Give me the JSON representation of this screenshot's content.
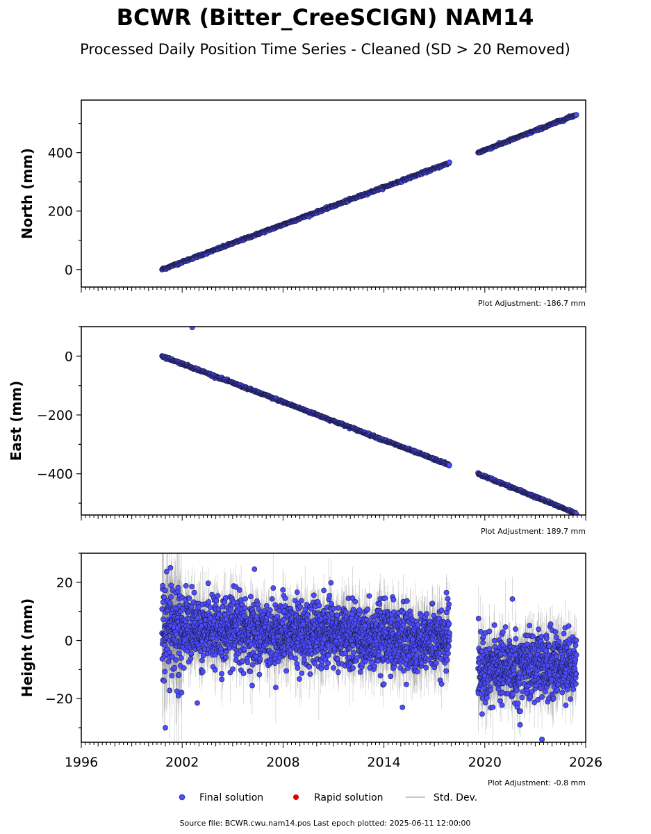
{
  "title": "BCWR (Bitter_CreeSCIGN) NAM14",
  "subtitle": "Processed Daily Position Time Series - Cleaned (SD > 20 Removed)",
  "legend": {
    "final": "Final solution",
    "rapid": "Rapid solution",
    "std": "Std. Dev."
  },
  "footer": "Source file: BCWR.cwu.nam14.pos  Last epoch plotted: 2025-06-11 12:00:00",
  "colors": {
    "final": "#4d4dff",
    "final_edge": "#1a1a40",
    "rapid": "#e00000",
    "std": "#c8c8c8",
    "std_dark": "#707070"
  },
  "chart_data": [
    {
      "type": "scatter",
      "ylabel": "North (mm)",
      "adjustment": "Plot Adjustment: -186.7 mm",
      "xlim": [
        1996,
        2026
      ],
      "ylim": [
        -60,
        580
      ],
      "yticks": [
        0,
        200,
        400
      ],
      "ytick_labels": [
        "0",
        "200",
        "400"
      ],
      "segments": [
        {
          "x": [
            2000.8,
            2017.9
          ],
          "y": [
            0,
            365
          ]
        },
        {
          "x": [
            2019.6,
            2025.45
          ],
          "y": [
            400,
            530
          ]
        }
      ],
      "noise_sd": 3,
      "outliers": []
    },
    {
      "type": "scatter",
      "ylabel": "East (mm)",
      "adjustment": "Plot Adjustment: 189.7 mm",
      "xlim": [
        1996,
        2026
      ],
      "ylim": [
        -540,
        100
      ],
      "yticks": [
        -400,
        -200,
        0
      ],
      "ytick_labels": [
        "−400",
        "−200",
        "0"
      ],
      "segments": [
        {
          "x": [
            2000.8,
            2017.9
          ],
          "y": [
            0,
            -370
          ]
        },
        {
          "x": [
            2019.6,
            2025.45
          ],
          "y": [
            -400,
            -535
          ]
        }
      ],
      "noise_sd": 3,
      "outliers": [
        {
          "x": 2002.6,
          "y": 97
        }
      ]
    },
    {
      "type": "scatter",
      "ylabel": "Height (mm)",
      "adjustment": "Plot Adjustment: -0.8 mm",
      "xlim": [
        1996,
        2026
      ],
      "ylim": [
        -35,
        30
      ],
      "yticks": [
        -20,
        0,
        20
      ],
      "ytick_labels": [
        "−20",
        "0",
        "20"
      ],
      "xticks": [
        1996,
        2002,
        2008,
        2014,
        2020,
        2026
      ],
      "xtick_labels": [
        "1996",
        "2002",
        "2008",
        "2014",
        "2020",
        "2026"
      ],
      "segments": [
        {
          "x": [
            2000.8,
            2017.9
          ],
          "y": [
            4,
            0
          ]
        },
        {
          "x": [
            2019.6,
            2025.45
          ],
          "y": [
            -10,
            -8
          ]
        }
      ],
      "noise_sd": 5.5,
      "outliers": [
        {
          "x": 2001.3,
          "y": 25
        },
        {
          "x": 2001.0,
          "y": -30
        },
        {
          "x": 2002.9,
          "y": -21.5
        },
        {
          "x": 2006.3,
          "y": 24.5
        },
        {
          "x": 2014.0,
          "y": -15
        },
        {
          "x": 2015.1,
          "y": -23
        },
        {
          "x": 2023.4,
          "y": -34
        },
        {
          "x": 2022.1,
          "y": -29
        }
      ]
    }
  ]
}
